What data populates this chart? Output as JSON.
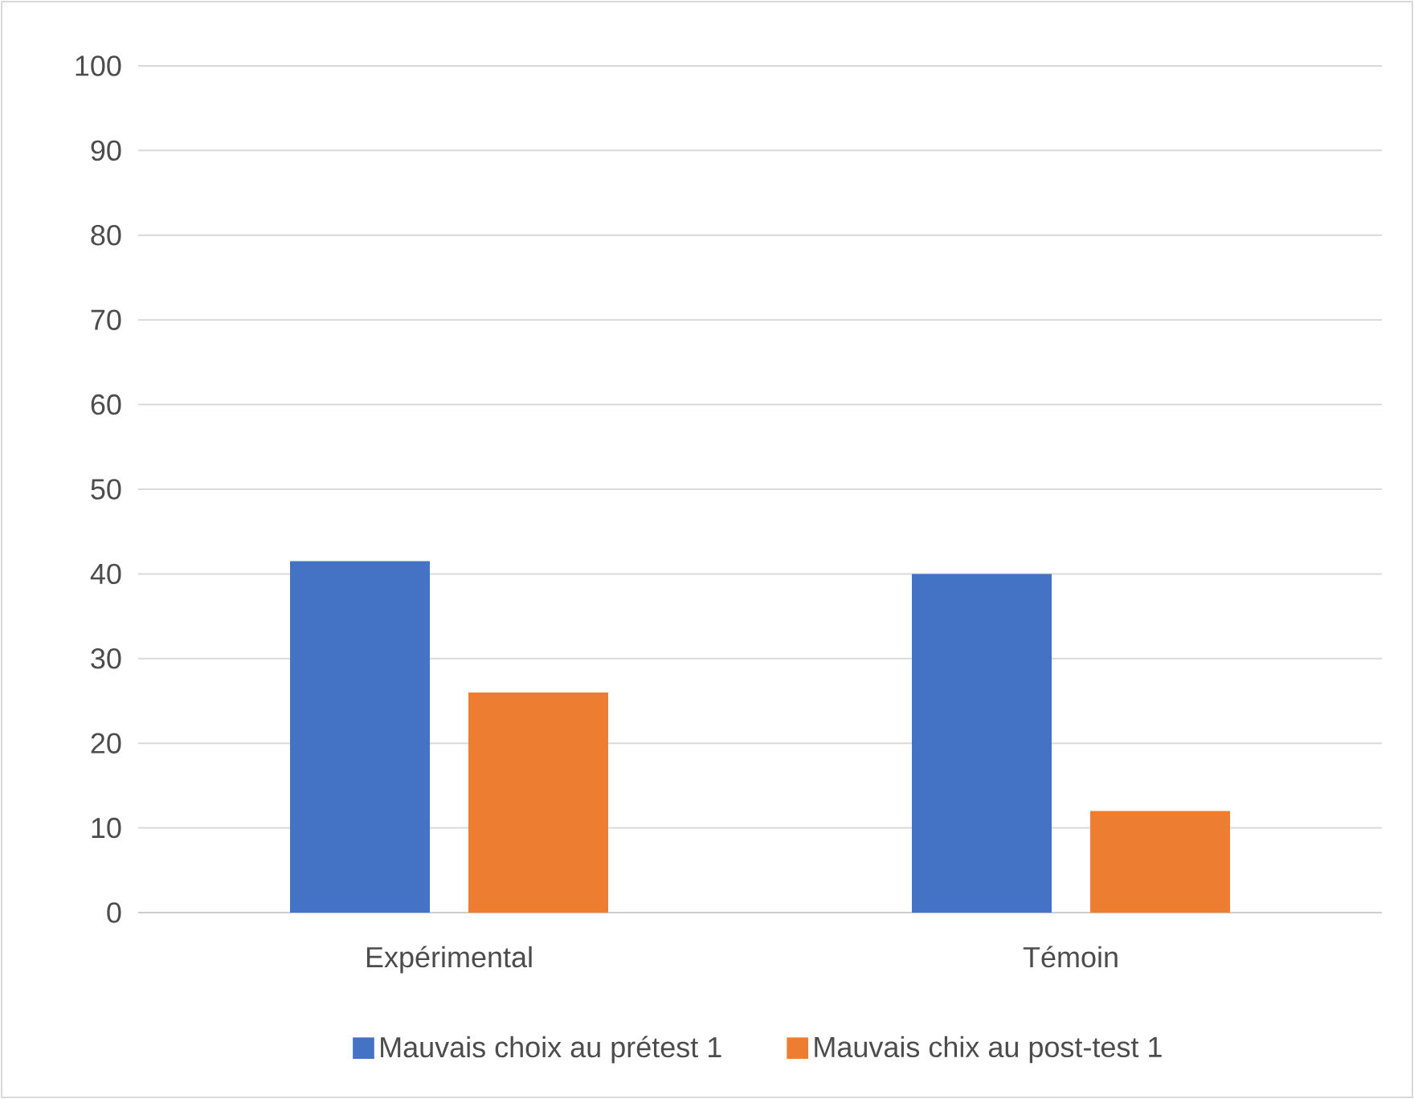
{
  "chart_data": {
    "type": "bar",
    "categories": [
      "Expérimental",
      "Témoin"
    ],
    "series": [
      {
        "name": "Mauvais choix au prétest 1",
        "color": "#4472c4",
        "values": [
          41.5,
          40
        ]
      },
      {
        "name": "Mauvais chix au post-test 1",
        "color": "#ed7d31",
        "values": [
          26,
          12
        ]
      }
    ],
    "ylim": [
      0,
      100
    ],
    "yticks": [
      0,
      10,
      20,
      30,
      40,
      50,
      60,
      70,
      80,
      90,
      100
    ],
    "grid": "y",
    "legend": "bottom"
  }
}
